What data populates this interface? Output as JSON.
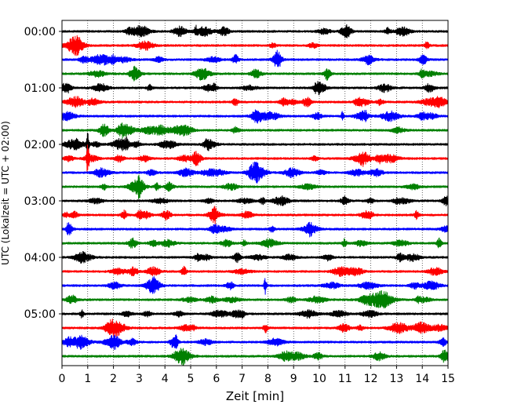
{
  "chart_data": {
    "type": "line",
    "title": "",
    "xlabel": "Zeit  [min]",
    "ylabel": "UTC (Lokalzeit = UTC + 02:00)",
    "xlim": [
      0,
      15
    ],
    "x_ticks": [
      0,
      1,
      2,
      3,
      4,
      5,
      6,
      7,
      8,
      9,
      10,
      11,
      12,
      13,
      14,
      15
    ],
    "x_grid": true,
    "y_tick_labels": [
      "00:00",
      "01:00",
      "02:00",
      "03:00",
      "04:00",
      "05:00"
    ],
    "y_tick_rows": [
      0,
      4,
      8,
      12,
      16,
      20
    ],
    "rows_per_hour": 4,
    "row_count": 24,
    "color_cycle": [
      "#000000",
      "#ff0000",
      "#0000ff",
      "#008000"
    ],
    "row_minutes": [
      "00:00",
      "00:15",
      "00:30",
      "00:45",
      "01:00",
      "01:15",
      "01:30",
      "01:45",
      "02:00",
      "02:15",
      "02:30",
      "02:45",
      "03:00",
      "03:15",
      "03:30",
      "03:45",
      "04:00",
      "04:15",
      "04:30",
      "04:45",
      "05:00",
      "05:15",
      "05:30",
      "05:45"
    ],
    "events": [
      {
        "row": 8,
        "x_min": 1.0,
        "amplitude": "large"
      },
      {
        "row": 9,
        "x_min": 1.0,
        "amplitude": "large"
      },
      {
        "row": 18,
        "x_min": 7.9,
        "amplitude": "medium"
      },
      {
        "row": 0,
        "x_min": 5.2,
        "amplitude": "small"
      },
      {
        "row": 6,
        "x_min": 10.9,
        "amplitude": "small"
      }
    ]
  }
}
